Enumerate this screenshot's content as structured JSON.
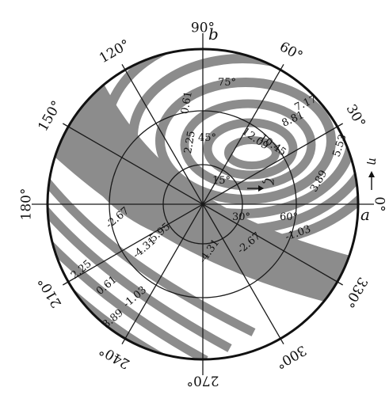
{
  "diagram": {
    "azimuth_labels": [
      "0°",
      "30°",
      "60°",
      "90°",
      "120°",
      "150°",
      "180°",
      "210°",
      "240°",
      "270°",
      "300°",
      "330°"
    ],
    "elevation_labels": [
      "15°",
      "30°",
      "45°",
      "60°",
      "75°"
    ],
    "axis_labels": {
      "a": "a",
      "b": "b",
      "eta": "η",
      "zeta": "ζ"
    },
    "contour_values_upper": [
      "0.61",
      "2.25",
      "7.17",
      "8.81",
      "10.45",
      "12.09",
      "5.53",
      "3.89",
      "-1.03"
    ],
    "contour_values_lower": [
      "-2.67",
      "-5.95",
      "-4.31",
      "-2.67",
      "-4.31",
      "2.25",
      "0.61",
      "-1.03",
      "3.89"
    ],
    "colors": {
      "band": "#8c8c8c",
      "line": "#1a1a1a",
      "background": "#ffffff"
    }
  }
}
